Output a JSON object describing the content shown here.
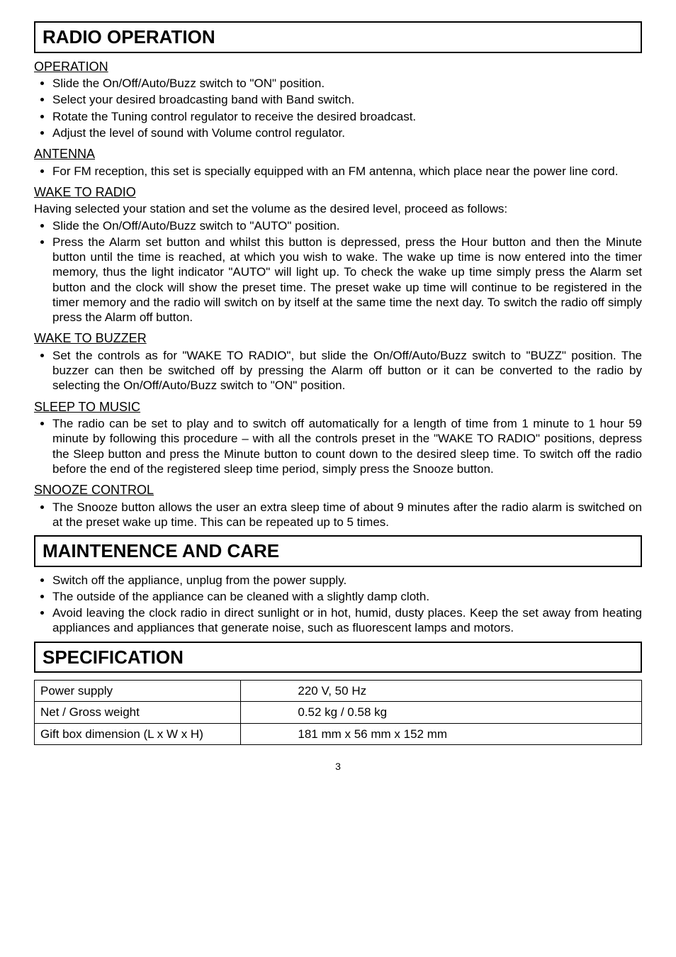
{
  "sections": {
    "radio_operation": {
      "title": "RADIO OPERATION",
      "operation": {
        "heading": "OPERATION",
        "items": [
          "Slide the On/Off/Auto/Buzz switch to \"ON\" position.",
          "Select your desired broadcasting band with Band switch.",
          "Rotate the Tuning control regulator to receive the desired broadcast.",
          "Adjust the level of sound with Volume control regulator."
        ]
      },
      "antenna": {
        "heading": "ANTENNA",
        "items": [
          "For FM reception, this set is specially equipped with an FM antenna, which place near the power line cord."
        ]
      },
      "wake_to_radio": {
        "heading": "WAKE TO RADIO",
        "intro": "Having selected your station and set the volume as the desired level, proceed as follows:",
        "items": [
          "Slide the On/Off/Auto/Buzz switch to \"AUTO\" position.",
          "Press the Alarm set button and whilst this button is depressed, press the Hour button and then the Minute button until the time is reached, at which you wish to wake. The wake up time is now entered into the timer memory, thus the light indicator \"AUTO\" will light up. To check the wake up time simply press the Alarm set button and the clock will show the preset time. The preset wake up time will continue to be registered in the timer memory and the radio will switch on by itself at the same time the next day. To switch the radio off simply press the Alarm off button."
        ]
      },
      "wake_to_buzzer": {
        "heading": "WAKE TO BUZZER",
        "items": [
          "Set the controls as for \"WAKE TO RADIO\", but slide the On/Off/Auto/Buzz switch to \"BUZZ\" position. The buzzer can then be switched off by pressing the Alarm off button or it can be converted to the radio by selecting the On/Off/Auto/Buzz switch to \"ON\" position."
        ]
      },
      "sleep_to_music": {
        "heading": "SLEEP TO MUSIC",
        "items": [
          "The radio can be set to play and to switch off automatically for a length of time from 1 minute to 1 hour 59 minute by following this procedure – with all the controls preset in the \"WAKE TO RADIO\" positions, depress the Sleep button and press the Minute button to count down to the desired sleep time. To switch off the radio before the end of the registered sleep time period, simply press the Snooze button."
        ]
      },
      "snooze_control": {
        "heading": "SNOOZE CONTROL",
        "items": [
          "The Snooze button allows the user an extra sleep time of about 9 minutes after the radio alarm is switched on at the preset wake up time. This can be repeated up to 5 times."
        ]
      }
    },
    "maintenance": {
      "title": "MAINTENENCE AND CARE",
      "items": [
        "Switch off the appliance, unplug from the power supply.",
        "The outside of the appliance can be cleaned with a slightly damp cloth.",
        "Avoid leaving the clock radio in direct sunlight or in hot, humid, dusty places. Keep the set away from heating appliances and appliances that generate noise, such as fluorescent lamps and motors."
      ]
    },
    "specification": {
      "title": "SPECIFICATION",
      "rows": [
        {
          "label": "Power supply",
          "value": "220 V, 50 Hz"
        },
        {
          "label": "Net / Gross weight",
          "value": "0.52 kg / 0.58 kg"
        },
        {
          "label": "Gift box dimension (L x W x H)",
          "value": "181 mm x 56 mm x 152 mm"
        }
      ]
    }
  },
  "page_number": "3"
}
